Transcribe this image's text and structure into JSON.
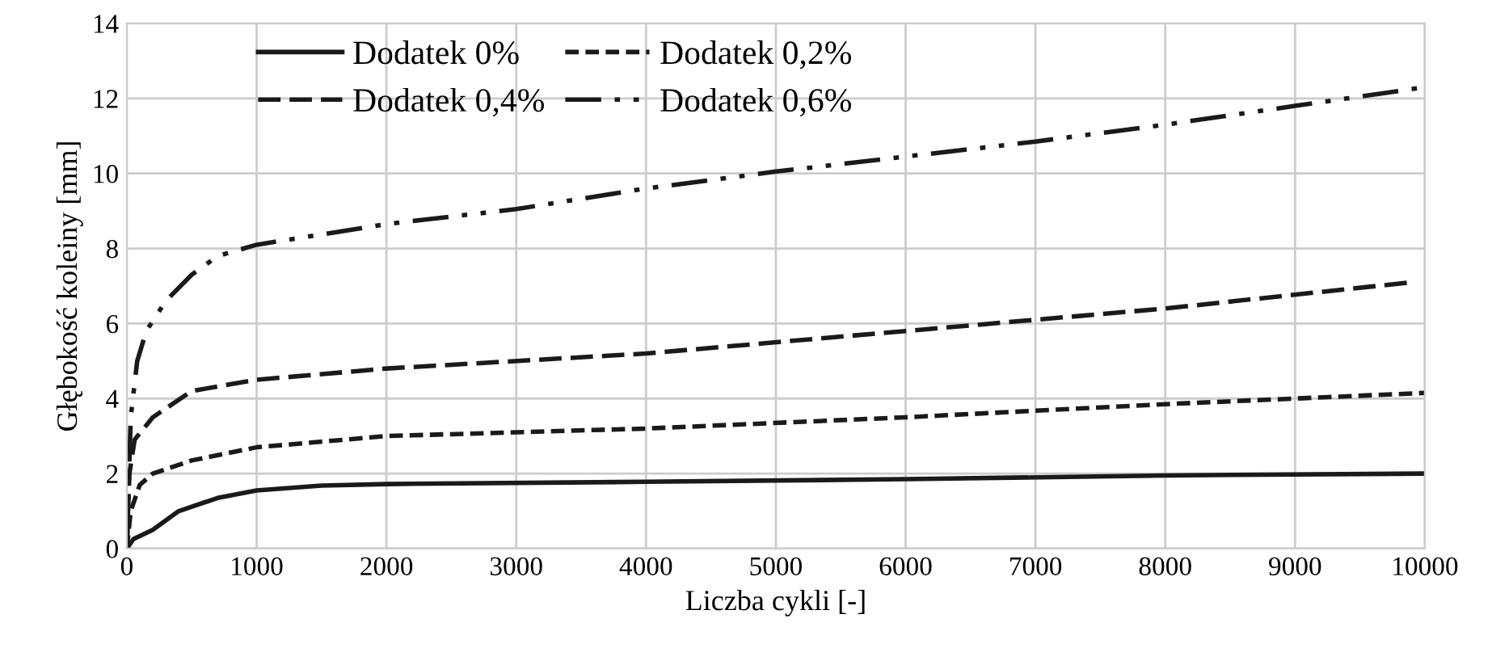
{
  "chart_data": {
    "type": "line",
    "xlabel": "Liczba cykli [-]",
    "ylabel": "Głębokość koleiny [mm]",
    "xlim": [
      0,
      10000
    ],
    "xticks": [
      0,
      1000,
      2000,
      3000,
      4000,
      5000,
      6000,
      7000,
      8000,
      9000,
      10000
    ],
    "ylim": [
      0,
      14
    ],
    "yticks": [
      0,
      2,
      4,
      6,
      8,
      10,
      12,
      14
    ],
    "grid": true,
    "legend": "top",
    "series": [
      {
        "name": "Dodatek 0%",
        "color": "#1a1a1a",
        "line_style": "solid",
        "x": [
          0,
          50,
          200,
          400,
          700,
          1000,
          1500,
          2000,
          4000,
          6000,
          8000,
          10000
        ],
        "values": [
          0,
          0.25,
          0.5,
          1.0,
          1.35,
          1.55,
          1.68,
          1.72,
          1.78,
          1.85,
          1.95,
          2.0
        ]
      },
      {
        "name": "Dodatek 0,2%",
        "color": "#1a1a1a",
        "line_style": "dotted",
        "x": [
          0,
          30,
          100,
          200,
          500,
          1000,
          2000,
          4000,
          6000,
          8000,
          10000
        ],
        "values": [
          0,
          1.0,
          1.7,
          2.0,
          2.35,
          2.7,
          3.0,
          3.2,
          3.5,
          3.85,
          4.15
        ]
      },
      {
        "name": "Dodatek 0,4%",
        "color": "#1a1a1a",
        "line_style": "dashed",
        "x": [
          0,
          20,
          60,
          200,
          500,
          1000,
          2000,
          4000,
          6000,
          8000,
          9900
        ],
        "values": [
          0,
          2.0,
          2.9,
          3.5,
          4.2,
          4.5,
          4.8,
          5.2,
          5.8,
          6.4,
          7.1
        ]
      },
      {
        "name": "Dodatek 0,6%",
        "color": "#1a1a1a",
        "line_style": "dashdot",
        "x": [
          0,
          30,
          80,
          150,
          300,
          500,
          700,
          1000,
          2000,
          3000,
          4000,
          5000,
          6000,
          7000,
          8000,
          9000,
          10000
        ],
        "values": [
          0,
          3.5,
          5.0,
          5.8,
          6.6,
          7.3,
          7.8,
          8.1,
          8.65,
          9.05,
          9.6,
          10.05,
          10.45,
          10.85,
          11.3,
          11.8,
          12.3
        ]
      }
    ]
  }
}
